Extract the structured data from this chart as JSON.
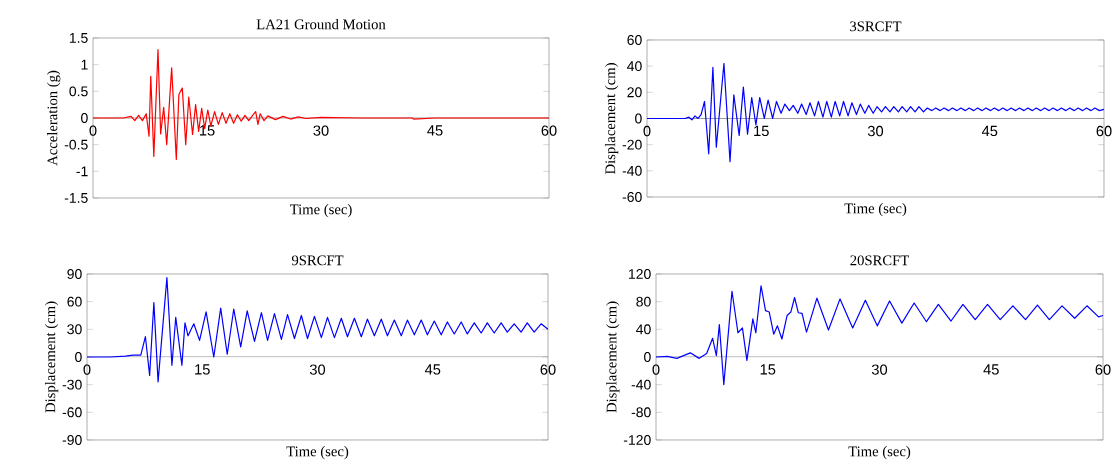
{
  "chart_data": [
    {
      "type": "line",
      "title": "LA21 Ground Motion",
      "xlabel": "Time (sec)",
      "ylabel": "Acceleration (g)",
      "color": "#ff0000",
      "xlim": [
        0,
        60
      ],
      "ylim": [
        -1.5,
        1.5
      ],
      "xticks": [
        0,
        15,
        30,
        45,
        60
      ],
      "yticks": [
        -1.5,
        -1,
        -0.5,
        0,
        0.5,
        1,
        1.5
      ],
      "x": [
        0,
        4,
        5,
        5.5,
        6,
        6.5,
        7,
        7.37,
        7.6,
        8.0,
        8.55,
        8.9,
        9.3,
        9.7,
        10.35,
        10.96,
        11.3,
        11.75,
        12.2,
        12.6,
        13.1,
        13.5,
        13.9,
        14.3,
        14.7,
        15.1,
        15.5,
        16,
        16.5,
        17,
        17.5,
        18,
        18.5,
        19,
        19.5,
        20,
        20.5,
        21,
        21.4,
        21.7,
        22,
        22.5,
        23,
        24,
        25,
        26,
        27,
        28,
        30,
        35,
        42,
        42.2,
        45,
        50,
        60
      ],
      "values": [
        0,
        0,
        0.03,
        -0.05,
        0.05,
        -0.05,
        0.08,
        -0.34,
        0.78,
        -0.72,
        1.28,
        -0.3,
        0.2,
        -0.5,
        0.94,
        -0.78,
        0.44,
        0.56,
        -0.5,
        0.39,
        -0.31,
        0.25,
        -0.25,
        0.18,
        -0.2,
        0.15,
        -0.15,
        0.12,
        -0.12,
        0.1,
        -0.1,
        0.08,
        -0.1,
        0.06,
        -0.06,
        0.05,
        -0.05,
        0.05,
        0.12,
        -0.12,
        0.08,
        -0.05,
        0.04,
        -0.03,
        0.03,
        -0.02,
        0.02,
        -0.01,
        0.01,
        0,
        0,
        -0.02,
        0,
        0,
        0
      ]
    },
    {
      "type": "line",
      "title": "3SRCFT",
      "xlabel": "Time (sec)",
      "ylabel": "Displacement (cm)",
      "color": "#0000ff",
      "xlim": [
        0,
        60
      ],
      "ylim": [
        -60,
        60
      ],
      "xticks": [
        0,
        15,
        30,
        45,
        60
      ],
      "yticks": [
        -60,
        -40,
        -20,
        0,
        20,
        40,
        60
      ],
      "x": [
        0,
        5,
        5.5,
        5.9,
        6.3,
        6.7,
        7.1,
        7.55,
        8.1,
        8.65,
        9.1,
        10.1,
        10.9,
        11.4,
        12.1,
        12.65,
        13.2,
        13.75,
        14.3,
        14.8,
        15.4,
        15.9,
        16.5,
        17,
        17.6,
        18.1,
        18.7,
        19.2,
        19.8,
        20.3,
        20.9,
        21.4,
        22,
        22.5,
        23.1,
        23.6,
        24.2,
        24.7,
        25.3,
        25.8,
        26.4,
        26.9,
        27.5,
        28,
        28.6,
        29.1,
        29.7,
        30.2,
        30.8,
        31.3,
        31.9,
        32.4,
        33,
        33.5,
        34.1,
        34.6,
        35.2,
        35.7,
        36.3,
        36.8,
        37.4,
        37.9,
        38.5,
        39,
        39.6,
        40.1,
        40.7,
        41.2,
        41.8,
        42.3,
        42.9,
        43.4,
        44,
        44.5,
        45.1,
        45.6,
        46.2,
        46.7,
        47.3,
        47.8,
        48.4,
        48.9,
        49.5,
        50,
        50.6,
        51.1,
        51.7,
        52.2,
        52.8,
        53.3,
        53.9,
        54.4,
        55,
        55.5,
        56.1,
        56.6,
        57.2,
        57.7,
        58.3,
        58.8,
        59.4,
        60
      ],
      "values": [
        0,
        0,
        1,
        -1,
        2,
        0,
        3,
        13,
        -27,
        39,
        -22,
        42,
        -33,
        18,
        -13,
        24,
        -12,
        16,
        -5,
        16,
        0,
        14,
        0,
        13,
        4,
        11,
        6,
        10,
        4,
        11,
        3,
        12,
        2,
        13,
        1,
        13,
        1,
        13,
        2,
        13,
        2,
        12,
        3,
        11,
        4,
        10,
        4,
        9,
        5,
        9,
        5,
        9,
        5,
        9,
        5,
        9,
        5,
        9,
        5,
        8,
        6,
        8,
        6,
        8,
        6,
        8,
        6,
        8,
        6,
        8,
        6,
        8,
        6,
        8,
        6,
        8,
        6,
        8,
        6,
        8,
        6,
        8,
        6,
        8,
        6,
        8,
        6,
        8,
        6,
        8,
        6,
        8,
        6,
        8,
        6,
        8,
        6,
        8,
        6,
        8,
        6,
        7
      ]
    },
    {
      "type": "line",
      "title": "9SRCFT",
      "xlabel": "Time (sec)",
      "ylabel": "Displacement (cm)",
      "color": "#0000ff",
      "xlim": [
        0,
        60
      ],
      "ylim": [
        -90,
        90
      ],
      "xticks": [
        0,
        15,
        30,
        45,
        60
      ],
      "yticks": [
        -90,
        -60,
        -30,
        0,
        30,
        60,
        90
      ],
      "x": [
        0,
        3,
        5,
        6,
        7,
        7.6,
        8.15,
        8.7,
        9.25,
        10.4,
        11.05,
        11.55,
        12.35,
        12.75,
        13.15,
        13.9,
        14.65,
        15.5,
        16.5,
        17.4,
        18.25,
        19.1,
        20,
        20.85,
        21.8,
        22.7,
        23.5,
        24.4,
        25.3,
        26.1,
        27,
        27.9,
        28.7,
        29.6,
        30.5,
        31.3,
        32.2,
        33.1,
        33.9,
        34.8,
        35.7,
        36.5,
        37.4,
        38.3,
        39.1,
        40,
        40.9,
        41.7,
        42.6,
        43.5,
        44.3,
        45.2,
        46.1,
        46.9,
        47.8,
        48.7,
        49.5,
        50.4,
        51.3,
        52.1,
        53,
        53.9,
        54.7,
        55.6,
        56.5,
        57.3,
        58.2,
        59.1,
        60
      ],
      "values": [
        0,
        0,
        1,
        2,
        2,
        22,
        -20,
        59,
        -27,
        86,
        -9,
        43,
        -9,
        37,
        23,
        36,
        18,
        49,
        0,
        53,
        3,
        52,
        11,
        50,
        17,
        48,
        18,
        47,
        19,
        46,
        20,
        45,
        20,
        44,
        21,
        43,
        21,
        42,
        22,
        42,
        22,
        41,
        23,
        41,
        23,
        40,
        23,
        40,
        24,
        40,
        24,
        39,
        24,
        38,
        25,
        38,
        25,
        37,
        26,
        37,
        26,
        37,
        27,
        36,
        27,
        37,
        27,
        36,
        30
      ]
    },
    {
      "type": "line",
      "title": "20SRCFT",
      "xlabel": "Time (sec)",
      "ylabel": "Displacement (cm)",
      "color": "#0000ff",
      "xlim": [
        0,
        60
      ],
      "ylim": [
        -120,
        120
      ],
      "xticks": [
        0,
        15,
        30,
        45,
        60
      ],
      "yticks": [
        -120,
        -80,
        -40,
        0,
        40,
        80,
        120
      ],
      "x": [
        0,
        1.5,
        2.8,
        4.6,
        5.8,
        6.8,
        7.6,
        8.1,
        8.5,
        9.1,
        10.2,
        11.0,
        11.6,
        12.2,
        13.0,
        13.4,
        14.1,
        14.7,
        15.2,
        15.8,
        16.3,
        16.9,
        17.6,
        18.1,
        18.6,
        19.1,
        19.6,
        20.2,
        20.7,
        21.6,
        23.15,
        24.7,
        26.4,
        28.1,
        29.7,
        31.35,
        33,
        34.65,
        36.3,
        37.9,
        39.6,
        41.2,
        42.85,
        44.5,
        46.2,
        47.9,
        49.6,
        51.2,
        52.8,
        54.5,
        56.2,
        57.85,
        59.4,
        60
      ],
      "values": [
        0,
        1,
        -2,
        6,
        -2,
        5,
        27,
        2,
        47,
        -40,
        95,
        35,
        42,
        -5,
        55,
        35,
        103,
        67,
        65,
        33,
        45,
        26,
        60,
        65,
        86,
        64,
        63,
        36,
        53,
        85,
        39,
        84,
        42,
        82,
        45,
        81,
        49,
        78,
        51,
        76,
        52,
        76,
        54,
        76,
        54,
        74,
        54,
        75,
        54,
        74,
        56,
        74,
        58,
        60
      ]
    }
  ]
}
